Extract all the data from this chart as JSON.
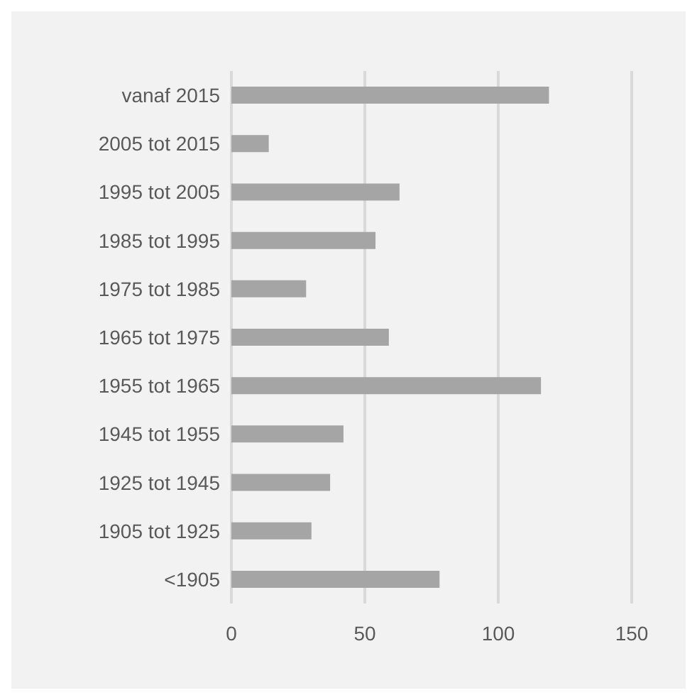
{
  "chart_data": {
    "type": "bar",
    "orientation": "horizontal",
    "categories": [
      "vanaf 2015",
      "2005 tot 2015",
      "1995 tot 2005",
      "1985 tot 1995",
      "1975 tot 1985",
      "1965 tot 1975",
      "1955 tot 1965",
      "1945 tot 1955",
      "1925 tot 1945",
      "1905 tot 1925",
      "<1905"
    ],
    "values": [
      119,
      14,
      63,
      54,
      28,
      59,
      116,
      42,
      37,
      30,
      78
    ],
    "color": "#a5a5a5",
    "xlim": [
      0,
      150
    ],
    "xticks": [
      0,
      50,
      100,
      150
    ],
    "grid": "x"
  }
}
